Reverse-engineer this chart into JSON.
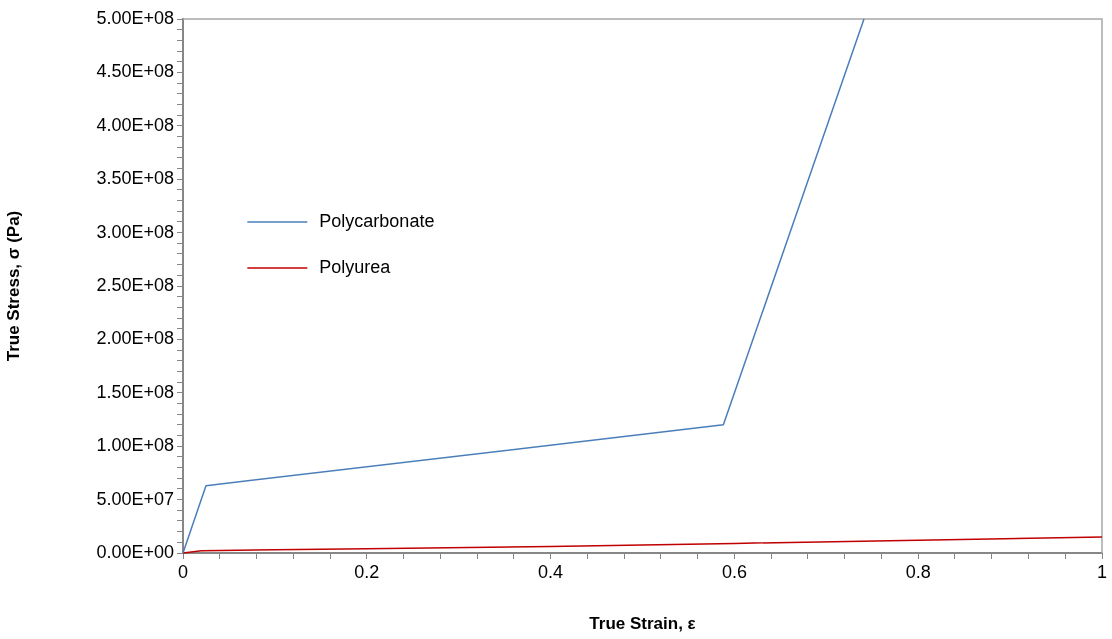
{
  "chart_data": {
    "type": "line",
    "xlabel": "True Strain, ε",
    "ylabel": "True Stress, σ (Pa)",
    "xlim": [
      0,
      1
    ],
    "ylim": [
      0,
      500000000
    ],
    "xticks": [
      0,
      {
        "value": 0.04,
        "label": null
      },
      {
        "value": 0.08,
        "label": null
      },
      {
        "value": 0.12,
        "label": null
      },
      {
        "value": 0.16,
        "label": null
      },
      0.2,
      {
        "value": 0.24,
        "label": null
      },
      {
        "value": 0.28,
        "label": null
      },
      {
        "value": 0.32,
        "label": null
      },
      {
        "value": 0.36,
        "label": null
      },
      0.4,
      {
        "value": 0.44,
        "label": null
      },
      {
        "value": 0.48,
        "label": null
      },
      {
        "value": 0.52,
        "label": null
      },
      {
        "value": 0.56,
        "label": null
      },
      0.6,
      {
        "value": 0.64,
        "label": null
      },
      {
        "value": 0.68,
        "label": null
      },
      {
        "value": 0.72,
        "label": null
      },
      {
        "value": 0.76,
        "label": null
      },
      0.8,
      {
        "value": 0.84,
        "label": null
      },
      {
        "value": 0.88,
        "label": null
      },
      {
        "value": 0.92,
        "label": null
      },
      {
        "value": 0.96,
        "label": null
      },
      1
    ],
    "yticks": [
      {
        "value": 0,
        "label": "0.00E+00"
      },
      {
        "value": 10000000,
        "label": null
      },
      {
        "value": 20000000,
        "label": null
      },
      {
        "value": 30000000,
        "label": null
      },
      {
        "value": 40000000,
        "label": null
      },
      {
        "value": 50000000,
        "label": "5.00E+07"
      },
      {
        "value": 60000000,
        "label": null
      },
      {
        "value": 70000000,
        "label": null
      },
      {
        "value": 80000000,
        "label": null
      },
      {
        "value": 90000000,
        "label": null
      },
      {
        "value": 100000000,
        "label": "1.00E+08"
      },
      {
        "value": 110000000,
        "label": null
      },
      {
        "value": 120000000,
        "label": null
      },
      {
        "value": 130000000,
        "label": null
      },
      {
        "value": 140000000,
        "label": null
      },
      {
        "value": 150000000,
        "label": "1.50E+08"
      },
      {
        "value": 160000000,
        "label": null
      },
      {
        "value": 170000000,
        "label": null
      },
      {
        "value": 180000000,
        "label": null
      },
      {
        "value": 190000000,
        "label": null
      },
      {
        "value": 200000000,
        "label": "2.00E+08"
      },
      {
        "value": 210000000,
        "label": null
      },
      {
        "value": 220000000,
        "label": null
      },
      {
        "value": 230000000,
        "label": null
      },
      {
        "value": 240000000,
        "label": null
      },
      {
        "value": 250000000,
        "label": "2.50E+08"
      },
      {
        "value": 260000000,
        "label": null
      },
      {
        "value": 270000000,
        "label": null
      },
      {
        "value": 280000000,
        "label": null
      },
      {
        "value": 290000000,
        "label": null
      },
      {
        "value": 300000000,
        "label": "3.00E+08"
      },
      {
        "value": 310000000,
        "label": null
      },
      {
        "value": 320000000,
        "label": null
      },
      {
        "value": 330000000,
        "label": null
      },
      {
        "value": 340000000,
        "label": null
      },
      {
        "value": 350000000,
        "label": "3.50E+08"
      },
      {
        "value": 360000000,
        "label": null
      },
      {
        "value": 370000000,
        "label": null
      },
      {
        "value": 380000000,
        "label": null
      },
      {
        "value": 390000000,
        "label": null
      },
      {
        "value": 400000000,
        "label": "4.00E+08"
      },
      {
        "value": 410000000,
        "label": null
      },
      {
        "value": 420000000,
        "label": null
      },
      {
        "value": 430000000,
        "label": null
      },
      {
        "value": 440000000,
        "label": null
      },
      {
        "value": 450000000,
        "label": "4.50E+08"
      },
      {
        "value": 460000000,
        "label": null
      },
      {
        "value": 470000000,
        "label": null
      },
      {
        "value": 480000000,
        "label": null
      },
      {
        "value": 490000000,
        "label": null
      },
      {
        "value": 500000000,
        "label": "5.00E+08"
      }
    ],
    "grid": false,
    "legend": "left",
    "marker": "none",
    "line_style": "solid",
    "series": [
      {
        "name": "Polycarbonate",
        "color": "#4a7ebb",
        "x": [
          0,
          0.025,
          0.588,
          0.741
        ],
        "values": [
          0,
          63000000,
          120000000,
          500000000
        ]
      },
      {
        "name": "Polyurea",
        "color": "#c00000",
        "x": [
          0,
          0.02,
          0.1,
          0.2,
          0.4,
          0.6,
          0.8,
          1
        ],
        "values": [
          0,
          2000000,
          3000000,
          4000000,
          6000000,
          9000000,
          12000000,
          15000000
        ]
      }
    ]
  }
}
